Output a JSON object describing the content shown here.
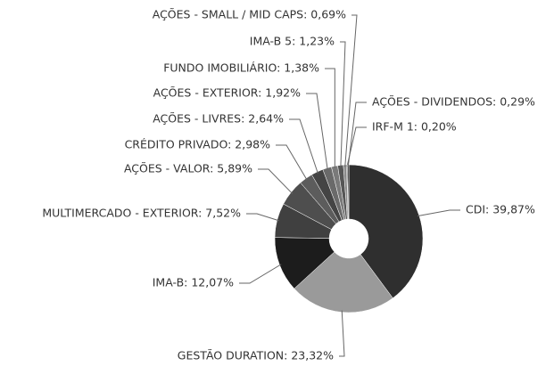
{
  "chart_data": {
    "type": "donut",
    "values": [
      39.87,
      23.32,
      12.07,
      7.52,
      5.89,
      2.98,
      2.64,
      1.92,
      1.38,
      1.23,
      0.69,
      0.2,
      0.29
    ],
    "value_labels": [
      "CDI: 39,87%",
      "GESTÃO DURATION: 23,32%",
      "IMA-B: 12,07%",
      "MULTIMERCADO - EXTERIOR: 7,52%",
      "AÇÕES - VALOR: 5,89%",
      "CRÉDITO PRIVADO: 2,98%",
      "AÇÕES - LIVRES: 2,64%",
      "AÇÕES - EXTERIOR: 1,92%",
      "FUNDO IMOBILIÁRIO: 1,38%",
      "IMA-B 5: 1,23%",
      "AÇÕES - SMALL / MID CAPS: 0,69%",
      "IRF-M 1: 0,20%",
      "AÇÕES - DIVIDENDOS: 0,29%"
    ],
    "colors": [
      "#2f2f2f",
      "#9a9a9a",
      "#1c1c1c",
      "#404040",
      "#4e4e4e",
      "#5c5c5c",
      "#444444",
      "#6a6a6a",
      "#7a7a7a",
      "#565656",
      "#8a8a8a",
      "#333333",
      "#222222"
    ]
  }
}
